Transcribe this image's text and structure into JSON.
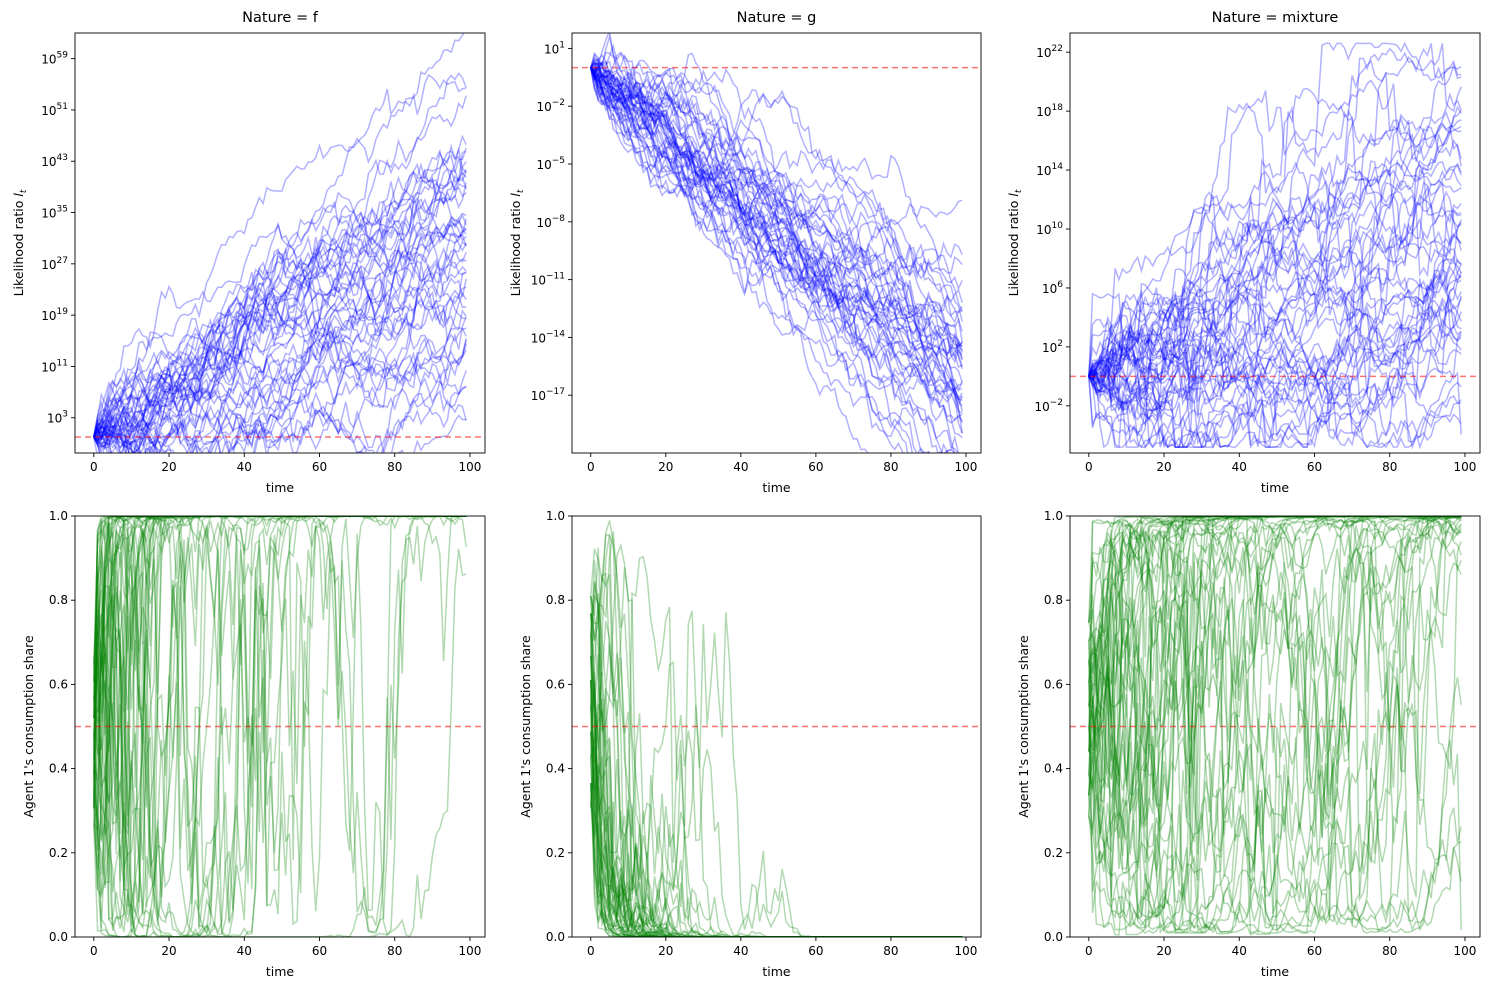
{
  "figure": {
    "background": "#ffffff"
  },
  "chart_data": [
    {
      "type": "line",
      "title": "Nature = f",
      "xlabel": "time",
      "ylabel": "Likelihood ratio l_t",
      "yscale": "log",
      "xlim": [
        -5,
        104
      ],
      "ylim_log10": [
        -2.5,
        63
      ],
      "xticks": [
        0,
        20,
        40,
        60,
        80,
        100
      ],
      "yticks_exp": [
        3,
        11,
        19,
        27,
        35,
        43,
        51,
        59
      ],
      "reference_line": 1,
      "series_count": 50,
      "series_color": "#0000ff",
      "reference_color": "#ff0000",
      "summary": {
        "start": 1,
        "final_typical_log10": 30,
        "final_min_log10": 15,
        "final_max_log10": 57
      }
    },
    {
      "type": "line",
      "title": "Nature = g",
      "xlabel": "time",
      "ylabel": "Likelihood ratio l_t",
      "yscale": "log",
      "xlim": [
        -5,
        104
      ],
      "ylim_log10": [
        -20,
        1.8
      ],
      "xticks": [
        0,
        20,
        40,
        60,
        80,
        100
      ],
      "yticks_exp": [
        1,
        -2,
        -5,
        -8,
        -11,
        -14,
        -17
      ],
      "reference_line": 1,
      "series_count": 50,
      "series_color": "#0000ff",
      "reference_color": "#ff0000",
      "summary": {
        "start": 1,
        "final_typical_log10": -15,
        "final_min_log10": -19.5,
        "final_max_log10": -9
      }
    },
    {
      "type": "line",
      "title": "Nature = mixture",
      "xlabel": "time",
      "ylabel": "Likelihood ratio l_t",
      "yscale": "log",
      "xlim": [
        -5,
        104
      ],
      "ylim_log10": [
        -5.2,
        23.3
      ],
      "xticks": [
        0,
        20,
        40,
        60,
        80,
        100
      ],
      "yticks_exp": [
        -2,
        2,
        6,
        10,
        14,
        18,
        22
      ],
      "reference_line": 1,
      "series_count": 50,
      "series_color": "#0000ff",
      "reference_color": "#ff0000",
      "summary": {
        "start": 1,
        "final_typical_log10": 6,
        "final_min_log10": -1,
        "final_max_log10": 22
      }
    },
    {
      "type": "line",
      "title": "",
      "xlabel": "time",
      "ylabel": "Agent 1's consumption share",
      "yscale": "linear",
      "xlim": [
        -5,
        104
      ],
      "ylim": [
        0,
        1
      ],
      "xticks": [
        0,
        20,
        40,
        60,
        80,
        100
      ],
      "yticks": [
        0.0,
        0.2,
        0.4,
        0.6,
        0.8,
        1.0
      ],
      "reference_line": 0.5,
      "series_count": 50,
      "series_color": "#008000",
      "reference_color": "#ff0000",
      "summary": {
        "start_range": [
          0.3,
          1.0
        ],
        "converges_to": 1.0,
        "converged_by_time": 25
      }
    },
    {
      "type": "line",
      "title": "",
      "xlabel": "time",
      "ylabel": "Agent 1's consumption share",
      "yscale": "linear",
      "xlim": [
        -5,
        104
      ],
      "ylim": [
        0,
        1
      ],
      "xticks": [
        0,
        20,
        40,
        60,
        80,
        100
      ],
      "yticks": [
        0.0,
        0.2,
        0.4,
        0.6,
        0.8,
        1.0
      ],
      "reference_line": 0.5,
      "series_count": 50,
      "series_color": "#008000",
      "reference_color": "#ff0000",
      "summary": {
        "start_range": [
          0.3,
          0.88
        ],
        "converges_to": 0.0,
        "converged_by_time": 35
      }
    },
    {
      "type": "line",
      "title": "",
      "xlabel": "time",
      "ylabel": "Agent 1's consumption share",
      "yscale": "linear",
      "xlim": [
        -5,
        104
      ],
      "ylim": [
        0,
        1
      ],
      "xticks": [
        0,
        20,
        40,
        60,
        80,
        100
      ],
      "yticks": [
        0.0,
        0.2,
        0.4,
        0.6,
        0.8,
        1.0
      ],
      "reference_line": 0.5,
      "series_count": 50,
      "series_color": "#008000",
      "reference_color": "#ff0000",
      "summary": {
        "start_range": [
          0.3,
          1.0
        ],
        "converges_to": "mixed",
        "converged_by_time": null
      }
    }
  ]
}
